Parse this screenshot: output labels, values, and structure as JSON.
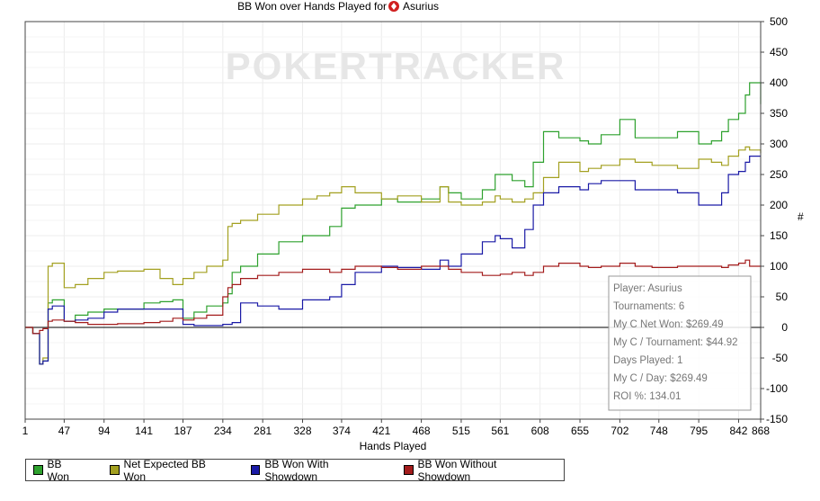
{
  "chart_data": {
    "type": "line",
    "title": "BB Won over Hands Played for",
    "title_player": "Asurius",
    "title_icon": "poker-suit-icon",
    "watermark": "POKERTRACKER",
    "xlabel": "Hands Played",
    "ylabel": "#",
    "x_ticks": [
      1,
      47,
      94,
      141,
      187,
      234,
      281,
      328,
      374,
      421,
      468,
      515,
      561,
      608,
      655,
      702,
      748,
      795,
      842,
      868
    ],
    "y_ticks": [
      500,
      450,
      400,
      350,
      300,
      250,
      200,
      150,
      100,
      50,
      0,
      -50,
      -100,
      -150
    ],
    "xlim": [
      1,
      868
    ],
    "ylim": [
      -150,
      500
    ],
    "grid": true,
    "legend_position": "bottom-left",
    "colors": {
      "bb_won": "#2ea12e",
      "net_expected": "#a3a020",
      "showdown": "#1a1aa6",
      "no_showdown": "#a31c1c"
    },
    "series": [
      {
        "name": "BB Won",
        "color": "#2ea12e",
        "x": [
          1,
          10,
          15,
          18,
          22,
          28,
          33,
          47,
          60,
          75,
          94,
          110,
          141,
          160,
          175,
          187,
          200,
          215,
          234,
          240,
          245,
          255,
          275,
          300,
          328,
          345,
          360,
          374,
          390,
          421,
          440,
          468,
          490,
          500,
          515,
          540,
          555,
          561,
          575,
          590,
          600,
          612,
          630,
          655,
          665,
          680,
          702,
          720,
          740,
          770,
          795,
          810,
          822,
          830,
          842,
          850,
          855,
          868
        ],
        "y": [
          0,
          -10,
          -10,
          -60,
          -55,
          40,
          45,
          10,
          20,
          25,
          30,
          30,
          40,
          42,
          45,
          15,
          25,
          35,
          40,
          55,
          90,
          100,
          120,
          140,
          150,
          150,
          165,
          195,
          200,
          210,
          205,
          210,
          230,
          220,
          210,
          225,
          250,
          250,
          240,
          230,
          270,
          320,
          310,
          305,
          300,
          315,
          340,
          310,
          310,
          320,
          300,
          305,
          320,
          340,
          350,
          380,
          400,
          365
        ]
      },
      {
        "name": "Net Expected BB Won",
        "color": "#a3a020",
        "x": [
          1,
          10,
          15,
          18,
          22,
          28,
          33,
          47,
          60,
          75,
          94,
          110,
          141,
          160,
          175,
          187,
          200,
          215,
          234,
          240,
          245,
          255,
          275,
          300,
          328,
          345,
          360,
          374,
          390,
          421,
          440,
          468,
          490,
          500,
          515,
          540,
          555,
          561,
          575,
          590,
          600,
          612,
          630,
          655,
          665,
          680,
          702,
          720,
          740,
          770,
          795,
          810,
          822,
          830,
          842,
          850,
          855,
          868
        ],
        "y": [
          0,
          -10,
          -10,
          -60,
          -50,
          100,
          105,
          65,
          70,
          80,
          90,
          92,
          95,
          80,
          70,
          80,
          90,
          100,
          110,
          165,
          170,
          175,
          185,
          200,
          210,
          215,
          220,
          230,
          220,
          210,
          215,
          205,
          230,
          205,
          200,
          205,
          215,
          210,
          205,
          210,
          220,
          245,
          270,
          255,
          260,
          265,
          275,
          270,
          265,
          260,
          275,
          270,
          265,
          280,
          290,
          295,
          290,
          285
        ]
      },
      {
        "name": "BB Won With Showdown",
        "color": "#1a1aa6",
        "x": [
          1,
          10,
          15,
          18,
          22,
          28,
          33,
          47,
          60,
          75,
          94,
          110,
          141,
          160,
          175,
          187,
          200,
          215,
          234,
          240,
          245,
          255,
          275,
          300,
          328,
          345,
          360,
          374,
          390,
          421,
          440,
          468,
          490,
          500,
          515,
          540,
          555,
          561,
          575,
          590,
          600,
          612,
          630,
          655,
          665,
          680,
          702,
          720,
          740,
          770,
          795,
          810,
          822,
          830,
          842,
          850,
          855,
          868
        ],
        "y": [
          0,
          -10,
          -10,
          -60,
          -55,
          30,
          35,
          10,
          12,
          15,
          25,
          30,
          30,
          30,
          30,
          5,
          3,
          3,
          5,
          5,
          8,
          40,
          35,
          30,
          45,
          45,
          50,
          70,
          90,
          100,
          98,
          95,
          110,
          100,
          120,
          140,
          150,
          145,
          130,
          160,
          200,
          220,
          230,
          225,
          235,
          240,
          240,
          225,
          225,
          220,
          200,
          200,
          220,
          250,
          255,
          270,
          280,
          280
        ]
      },
      {
        "name": "BB Won Without Showdown",
        "color": "#a31c1c",
        "x": [
          1,
          10,
          15,
          18,
          22,
          28,
          33,
          47,
          60,
          75,
          94,
          110,
          141,
          160,
          175,
          187,
          200,
          215,
          234,
          240,
          245,
          255,
          275,
          300,
          328,
          345,
          360,
          374,
          390,
          421,
          440,
          468,
          490,
          500,
          515,
          540,
          555,
          561,
          575,
          590,
          600,
          612,
          630,
          655,
          665,
          680,
          702,
          720,
          740,
          770,
          795,
          810,
          822,
          830,
          842,
          850,
          855,
          868
        ],
        "y": [
          0,
          -10,
          -10,
          -5,
          -2,
          10,
          12,
          10,
          8,
          5,
          5,
          6,
          8,
          10,
          15,
          12,
          15,
          20,
          50,
          65,
          70,
          80,
          85,
          90,
          95,
          95,
          90,
          95,
          100,
          98,
          95,
          100,
          100,
          95,
          90,
          85,
          85,
          87,
          90,
          85,
          90,
          100,
          105,
          100,
          98,
          100,
          105,
          100,
          98,
          100,
          100,
          100,
          98,
          102,
          105,
          110,
          100,
          100
        ]
      }
    ],
    "infobox": {
      "lines": [
        "Player: Asurius",
        "Tournaments: 6",
        "My C Net Won: $269.49",
        "My C / Tournament: $44.92",
        "Days Played: 1",
        "My C / Day: $269.49",
        "ROI %: 134.01"
      ],
      "position": "bottom-right"
    }
  }
}
